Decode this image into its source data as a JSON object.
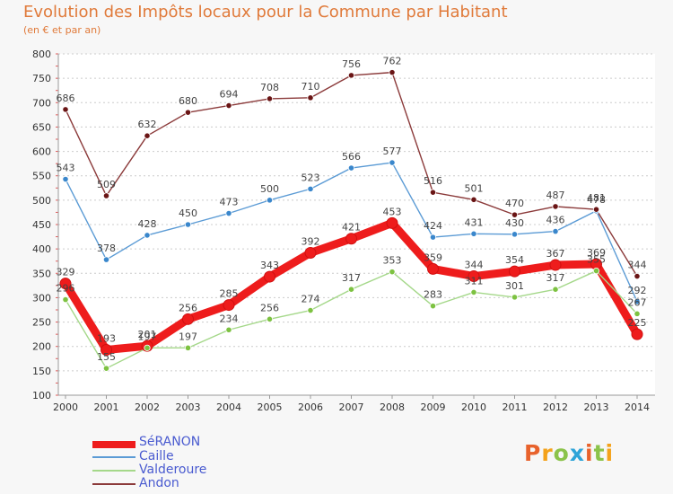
{
  "header": {
    "title": "Evolution des Impôts locaux pour la Commune par Habitant",
    "subtitle": "(en € et par an)"
  },
  "logo": {
    "text": "Proxiti",
    "colors": [
      "#e8622c",
      "#f4a21a",
      "#8bc34a",
      "#2fa4d8",
      "#e8622c",
      "#8bc34a",
      "#f4a21a"
    ]
  },
  "colors": {
    "background": "#f7f7f7",
    "title": "#e07a3a",
    "grid": "#cccccc"
  },
  "chart_data": {
    "type": "line",
    "title": "Evolution des Impôts locaux pour la Commune par Habitant",
    "subtitle": "(en € et par an)",
    "xlabel": "",
    "ylabel": "",
    "x": [
      "2000",
      "2001",
      "2002",
      "2003",
      "2004",
      "2005",
      "2006",
      "2007",
      "2008",
      "2009",
      "2010",
      "2011",
      "2012",
      "2013",
      "2014"
    ],
    "yticks": [
      100,
      150,
      200,
      250,
      300,
      350,
      400,
      450,
      500,
      550,
      600,
      650,
      700,
      750,
      800
    ],
    "ylim": [
      100,
      800
    ],
    "grid": true,
    "legend_position": "bottom-left",
    "series": [
      {
        "name": "SéRANON",
        "color": "#ee1c1c",
        "dot": "#ee1c1c",
        "values": [
          329,
          193,
          201,
          256,
          285,
          343,
          392,
          421,
          453,
          359,
          344,
          354,
          367,
          369,
          225
        ],
        "labels": [
          "329",
          "193",
          "201",
          "256",
          "285",
          "343",
          "392",
          "421",
          "453",
          "359",
          "344",
          "354",
          "367",
          "369",
          "225"
        ]
      },
      {
        "name": "Caille",
        "color": "#5b9bd5",
        "dot": "#3a87cc",
        "values": [
          543,
          378,
          428,
          450,
          473,
          500,
          523,
          566,
          577,
          424,
          431,
          430,
          436,
          478,
          292
        ],
        "labels": [
          "543",
          "378",
          "428",
          "450",
          "473",
          "500",
          "523",
          "566",
          "577",
          "424",
          "431",
          "430",
          "436",
          "478",
          "292"
        ]
      },
      {
        "name": "Valderoure",
        "color": "#a5d88a",
        "dot": "#7dc241",
        "values": [
          296,
          155,
          197,
          197,
          234,
          256,
          274,
          317,
          353,
          283,
          311,
          301,
          317,
          355,
          267
        ],
        "labels": [
          "296",
          "155",
          "197",
          "197",
          "234",
          "256",
          "274",
          "317",
          "353",
          "283",
          "311",
          "301",
          "317",
          "355",
          "267"
        ]
      },
      {
        "name": "Andon",
        "color": "#8b3a3a",
        "dot": "#6a1515",
        "values": [
          686,
          509,
          632,
          680,
          694,
          708,
          710,
          756,
          762,
          516,
          501,
          470,
          487,
          481,
          344
        ],
        "labels": [
          "686",
          "509",
          "632",
          "680",
          "694",
          "708",
          "710",
          "756",
          "762",
          "516",
          "501",
          "470",
          "487",
          "481",
          "344"
        ]
      }
    ]
  }
}
